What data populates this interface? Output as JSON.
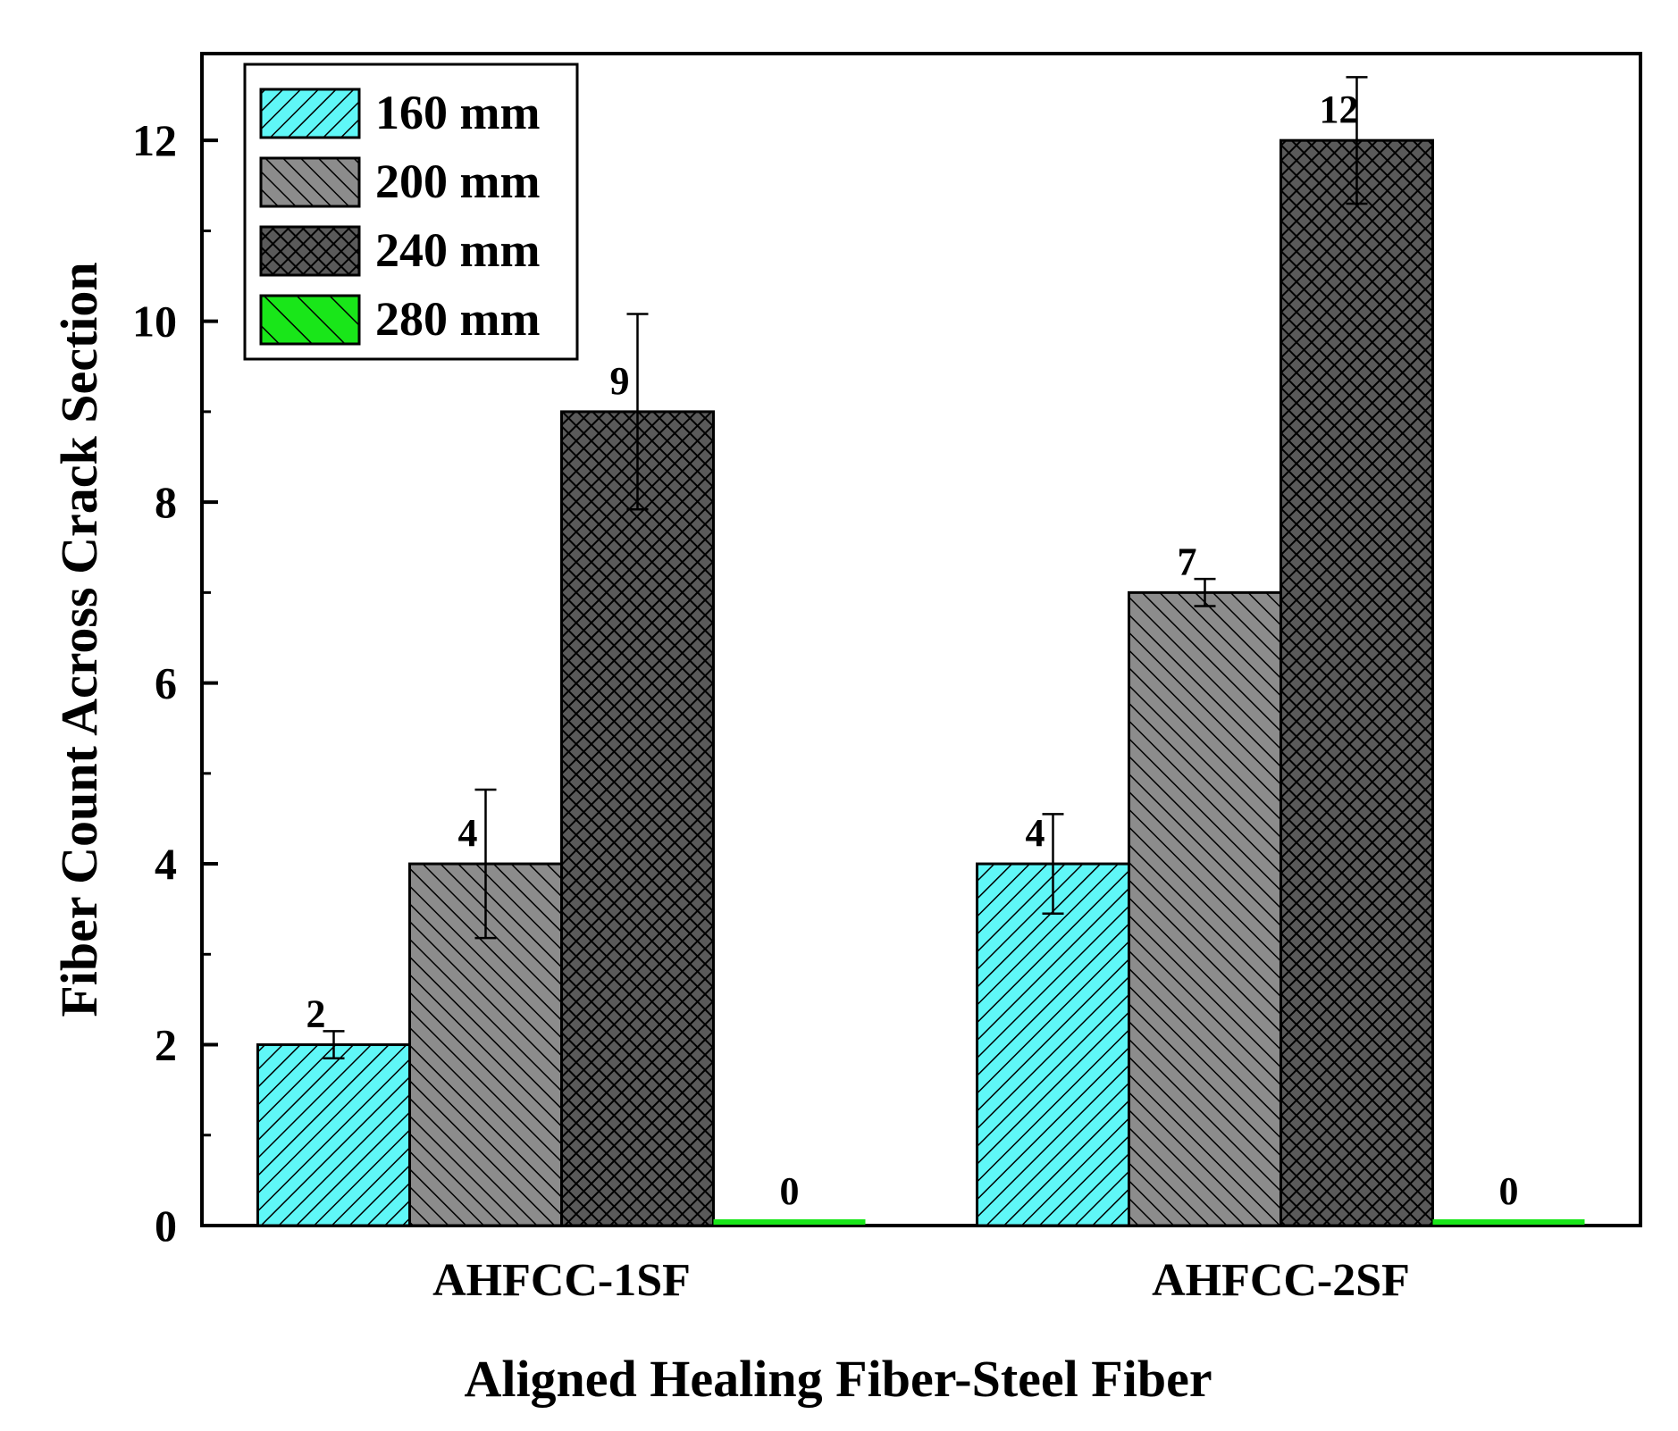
{
  "chart_data": {
    "type": "bar",
    "title": "",
    "xlabel": "Aligned Healing Fiber-Steel Fiber",
    "ylabel": "Fiber Count Across Crack Section",
    "categories": [
      "AHFCC-1SF",
      "AHFCC-2SF"
    ],
    "ylim": [
      0,
      12.96
    ],
    "yticks": [
      0,
      2,
      4,
      6,
      8,
      10,
      12
    ],
    "yticks_labels": [
      "0",
      "2",
      "4",
      "6",
      "8",
      "10",
      "12"
    ],
    "grid": false,
    "legend_position": "top-left",
    "series": [
      {
        "name": "160 mm",
        "values": [
          2,
          4
        ],
        "errors": [
          0.15,
          0.55
        ],
        "labels": [
          "2",
          "4"
        ],
        "color": "#5ff7f7",
        "hatch": "forward-diagonal"
      },
      {
        "name": "200 mm",
        "values": [
          4,
          7
        ],
        "errors": [
          0.82,
          0.15
        ],
        "labels": [
          "4",
          "7"
        ],
        "color": "#8c8c8c",
        "hatch": "back-diagonal"
      },
      {
        "name": "240 mm",
        "values": [
          9,
          12
        ],
        "errors": [
          1.08,
          0.7
        ],
        "labels": [
          "9",
          "12"
        ],
        "color": "#3c3c3c",
        "hatch": "crosshatch"
      },
      {
        "name": "280 mm",
        "values": [
          0,
          0
        ],
        "errors": [
          0,
          0
        ],
        "labels": [
          "0",
          "0"
        ],
        "color": "#19e619",
        "hatch": "back-diagonal-wide"
      }
    ]
  }
}
